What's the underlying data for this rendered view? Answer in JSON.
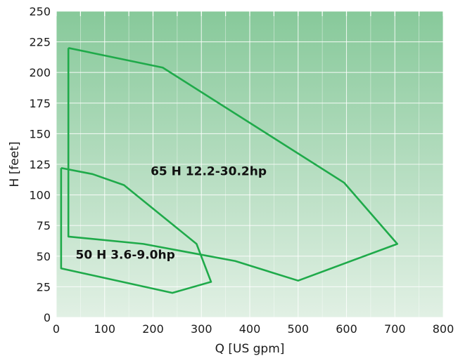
{
  "chart_data": {
    "type": "area",
    "xlabel": "Q [US gpm]",
    "ylabel": "H [feet]",
    "xlim": [
      0,
      800
    ],
    "ylim": [
      0,
      250
    ],
    "x_ticks": [
      "0",
      "100",
      "200",
      "300",
      "400",
      "500",
      "600",
      "700",
      "800"
    ],
    "y_ticks": [
      "0",
      "25",
      "50",
      "75",
      "100",
      "125",
      "150",
      "175",
      "200",
      "225",
      "250"
    ],
    "grid": true,
    "background_gradient": [
      "#87c99a",
      "#e1f0e4"
    ],
    "line_color": "#1faa4a",
    "series": [
      {
        "name": "65 H 12.2-30.2hp",
        "label_anchor": [
          195,
          116
        ],
        "points": [
          [
            25,
            220
          ],
          [
            220,
            204
          ],
          [
            595,
            110
          ],
          [
            705,
            60
          ],
          [
            500,
            30
          ],
          [
            370,
            46
          ],
          [
            180,
            60
          ],
          [
            25,
            66
          ],
          [
            25,
            220
          ]
        ]
      },
      {
        "name": "50 H 3.6-9.0hp",
        "label_anchor": [
          40,
          48
        ],
        "points": [
          [
            10,
            122
          ],
          [
            75,
            117
          ],
          [
            140,
            108
          ],
          [
            290,
            60
          ],
          [
            320,
            29
          ],
          [
            240,
            20
          ],
          [
            10,
            40
          ],
          [
            10,
            122
          ]
        ]
      }
    ]
  }
}
